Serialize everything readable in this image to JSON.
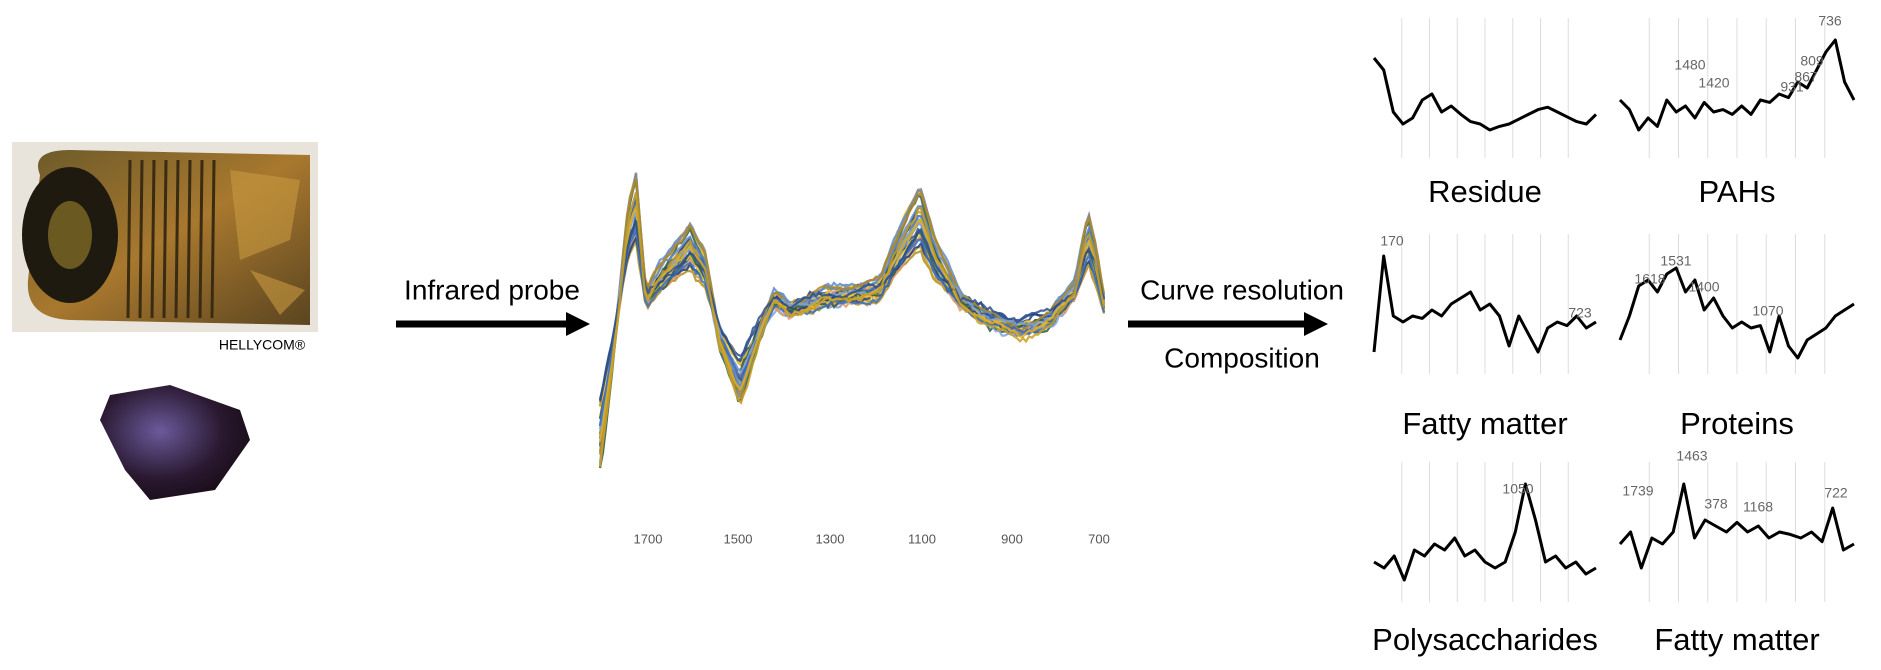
{
  "sample": {
    "caption": "HELLYCOM®"
  },
  "steps": {
    "probe": "Infrared probe",
    "resolution": "Curve resolution",
    "composition": "Composition"
  },
  "spectrum": {
    "xticks": [
      "1700",
      "1500",
      "1300",
      "1100",
      "900",
      "700"
    ]
  },
  "panels": [
    {
      "label": "Residue"
    },
    {
      "label": "PAHs",
      "peaks": [
        "736",
        "1480",
        "1420",
        "931",
        "867",
        "809"
      ]
    },
    {
      "label": "Fatty matter",
      "peaks": [
        "170",
        "723"
      ]
    },
    {
      "label": "Proteins",
      "peaks": [
        "1531",
        "1618",
        "1400",
        "1070"
      ]
    },
    {
      "label": "Polysaccharides",
      "peaks": [
        "1050"
      ]
    },
    {
      "label": "Fatty matter",
      "peaks": [
        "1739",
        "1463",
        "378",
        "1168",
        "722"
      ]
    }
  ]
}
